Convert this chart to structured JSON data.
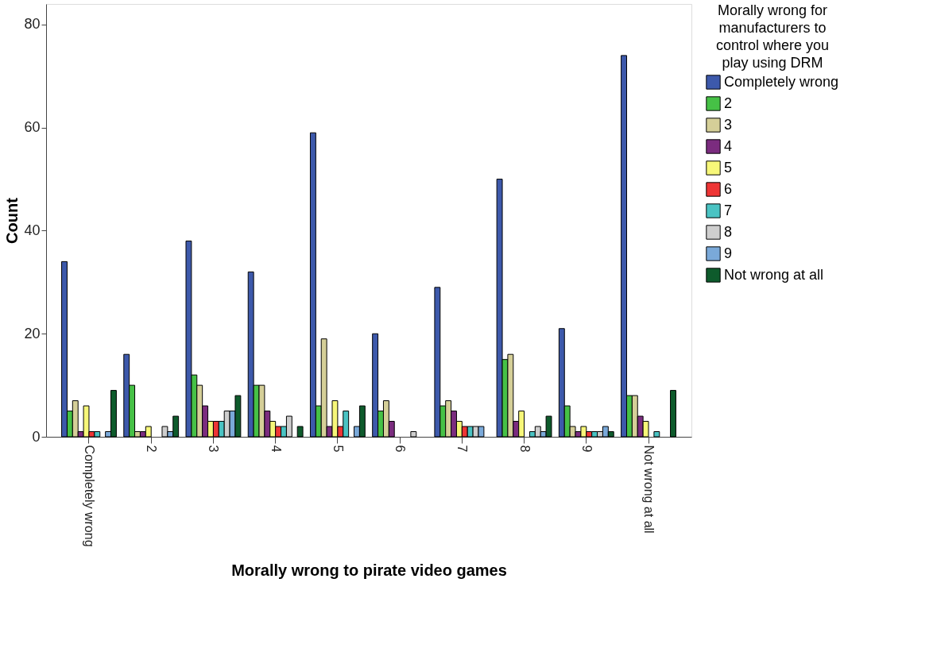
{
  "chart_data": {
    "type": "bar",
    "xlabel": "Morally wrong to pirate video games",
    "ylabel": "Count",
    "legend_title": "Morally wrong for\nmanufacturers to\ncontrol where you\nplay using DRM",
    "categories": [
      "Completely wrong",
      "2",
      "3",
      "4",
      "5",
      "6",
      "7",
      "8",
      "9",
      "Not wrong at all"
    ],
    "series": [
      {
        "name": "Completely wrong",
        "color": "#3d59ab",
        "values": [
          34,
          16,
          38,
          32,
          59,
          20,
          29,
          50,
          21,
          74
        ]
      },
      {
        "name": "2",
        "color": "#46c146",
        "values": [
          5,
          10,
          12,
          10,
          6,
          5,
          6,
          15,
          6,
          8
        ]
      },
      {
        "name": "3",
        "color": "#d5cf98",
        "values": [
          7,
          1,
          10,
          10,
          19,
          7,
          7,
          16,
          2,
          8
        ]
      },
      {
        "name": "4",
        "color": "#7b2c7f",
        "values": [
          1,
          1,
          6,
          5,
          2,
          3,
          5,
          3,
          1,
          4
        ]
      },
      {
        "name": "5",
        "color": "#f7f779",
        "values": [
          6,
          2,
          3,
          3,
          7,
          0,
          3,
          5,
          2,
          3
        ]
      },
      {
        "name": "6",
        "color": "#ee3535",
        "values": [
          1,
          0,
          3,
          2,
          2,
          0,
          2,
          0,
          1,
          0
        ]
      },
      {
        "name": "7",
        "color": "#4ac3c3",
        "values": [
          1,
          0,
          3,
          2,
          5,
          0,
          2,
          1,
          1,
          1
        ]
      },
      {
        "name": "8",
        "color": "#cecece",
        "values": [
          0,
          2,
          5,
          4,
          0,
          1,
          2,
          2,
          1,
          0
        ]
      },
      {
        "name": "9",
        "color": "#7aa9d9",
        "values": [
          1,
          1,
          5,
          0,
          2,
          0,
          2,
          1,
          2,
          0
        ]
      },
      {
        "name": "Not wrong at all",
        "color": "#0e5b2c",
        "values": [
          9,
          4,
          8,
          2,
          6,
          0,
          0,
          4,
          1,
          9
        ]
      }
    ],
    "ylim": [
      0,
      84
    ],
    "yticks": [
      0,
      20,
      40,
      60,
      80
    ],
    "grid": false,
    "legend": "right"
  }
}
